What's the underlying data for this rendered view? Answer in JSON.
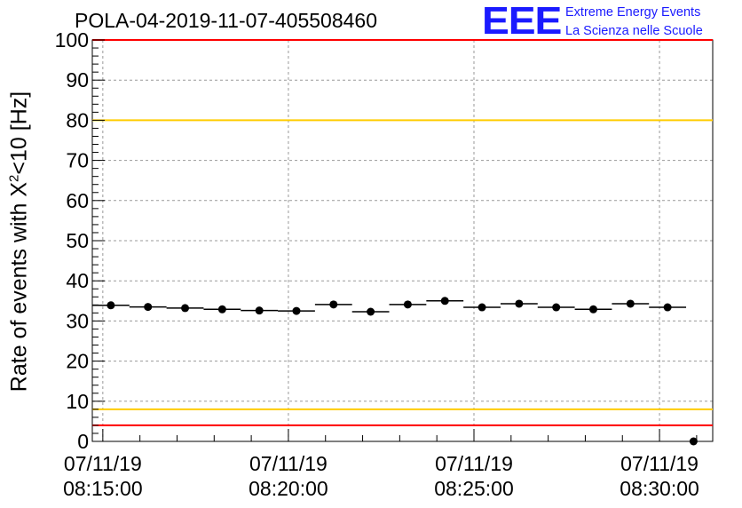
{
  "header": {
    "title": "POLA-04-2019-11-07-405508460"
  },
  "logo": {
    "mark": "EEE",
    "line1": "Extreme Energy Events",
    "line2": "La Scienza nelle Scuole"
  },
  "chart_data": {
    "type": "scatter",
    "title": "POLA-04-2019-11-07-405508460",
    "ylabel": {
      "before": "Rate of events with ",
      "chi": "X",
      "sup": "2",
      "after": "<10 [Hz]"
    },
    "ylim": [
      0,
      100
    ],
    "yticks": [
      0,
      10,
      20,
      30,
      40,
      50,
      60,
      70,
      80,
      90,
      100
    ],
    "xlim": [
      "08:14:43",
      "08:31:26"
    ],
    "xticks": [
      {
        "time": "08:15:00",
        "date": "07/11/19",
        "clock": "08:15:00"
      },
      {
        "time": "08:20:00",
        "date": "07/11/19",
        "clock": "08:20:00"
      },
      {
        "time": "08:25:00",
        "date": "07/11/19",
        "clock": "08:25:00"
      },
      {
        "time": "08:30:00",
        "date": "07/11/19",
        "clock": "08:30:00"
      }
    ],
    "grid": true,
    "reference_lines": [
      {
        "value": 100,
        "color": "#ff0000"
      },
      {
        "value": 80,
        "color": "#ffcc00"
      },
      {
        "value": 8,
        "color": "#ffcc00"
      },
      {
        "value": 4,
        "color": "#ff0000"
      }
    ],
    "points": [
      {
        "start": "08:14:43",
        "end": "08:15:43",
        "value": 33.9
      },
      {
        "start": "08:15:43",
        "end": "08:16:43",
        "value": 33.5
      },
      {
        "start": "08:16:43",
        "end": "08:17:43",
        "value": 33.2
      },
      {
        "start": "08:17:43",
        "end": "08:18:43",
        "value": 32.9
      },
      {
        "start": "08:18:43",
        "end": "08:19:43",
        "value": 32.6
      },
      {
        "start": "08:19:43",
        "end": "08:20:43",
        "value": 32.5
      },
      {
        "start": "08:20:43",
        "end": "08:21:43",
        "value": 34.1
      },
      {
        "start": "08:21:43",
        "end": "08:22:43",
        "value": 32.3
      },
      {
        "start": "08:22:43",
        "end": "08:23:43",
        "value": 34.1
      },
      {
        "start": "08:23:43",
        "end": "08:24:43",
        "value": 35.0
      },
      {
        "start": "08:24:43",
        "end": "08:25:43",
        "value": 33.4
      },
      {
        "start": "08:25:43",
        "end": "08:26:43",
        "value": 34.3
      },
      {
        "start": "08:26:43",
        "end": "08:27:43",
        "value": 33.4
      },
      {
        "start": "08:27:43",
        "end": "08:28:43",
        "value": 32.9
      },
      {
        "start": "08:28:43",
        "end": "08:29:43",
        "value": 34.3
      },
      {
        "start": "08:29:43",
        "end": "08:30:43",
        "value": 33.4
      }
    ],
    "extra_points": [
      {
        "time": "08:30:55",
        "value": 0
      }
    ],
    "colors": {
      "marker": "#000000",
      "grid": "#999999"
    }
  }
}
